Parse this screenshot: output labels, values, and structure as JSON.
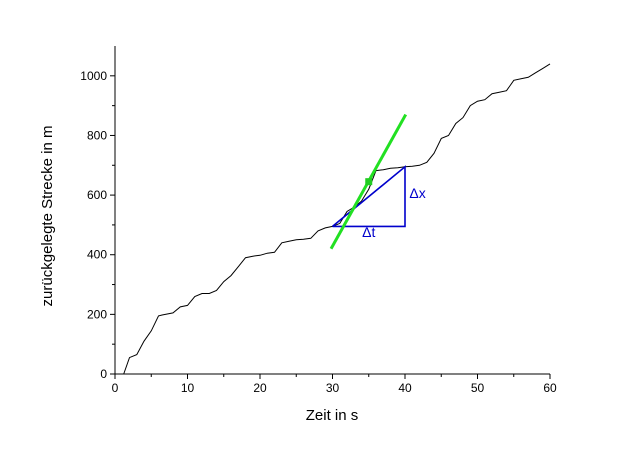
{
  "chart_data": {
    "type": "line",
    "title": "",
    "xlabel": "Zeit in s",
    "ylabel": "zurückgelegte Strecke in m",
    "xlim": [
      0,
      60
    ],
    "ylim": [
      0,
      1100
    ],
    "grid": false,
    "x_ticks": [
      0,
      10,
      20,
      30,
      40,
      50,
      60
    ],
    "y_ticks": [
      0,
      200,
      400,
      600,
      800,
      1000
    ],
    "x_tick_labels": [
      "0",
      "10",
      "20",
      "30",
      "40",
      "50",
      "60"
    ],
    "y_tick_labels": [
      "0",
      "200",
      "400",
      "600",
      "800",
      "1000"
    ],
    "series": [
      {
        "color": "#000000",
        "x": [
          1.2,
          2,
          3,
          4,
          5,
          6,
          6.5,
          8,
          9,
          10,
          11,
          12,
          13,
          14,
          15,
          16,
          17,
          18,
          19,
          20,
          21,
          22,
          23,
          24,
          25,
          26,
          27,
          28,
          29,
          30,
          31,
          32,
          33,
          34,
          35,
          36,
          37,
          38,
          39,
          40,
          41,
          42,
          43,
          44,
          45,
          46,
          47,
          48,
          49,
          50,
          51,
          52,
          53,
          54,
          55,
          56,
          57,
          58,
          59,
          60
        ],
        "y": [
          0,
          55,
          65,
          110,
          145,
          195,
          198,
          205,
          225,
          230,
          260,
          270,
          270,
          280,
          310,
          330,
          360,
          390,
          395,
          398,
          405,
          408,
          440,
          445,
          450,
          452,
          455,
          480,
          490,
          495,
          505,
          545,
          560,
          580,
          620,
          682,
          685,
          690,
          692,
          695,
          697,
          700,
          710,
          740,
          790,
          800,
          840,
          860,
          900,
          915,
          920,
          940,
          945,
          950,
          985,
          990,
          995,
          1010,
          1025,
          1040
        ]
      }
    ],
    "annotations": {
      "tangent": {
        "color": "#22e022",
        "x": [
          29.8,
          40.1
        ],
        "y": [
          420,
          870
        ]
      },
      "point": {
        "color": "#22cc22",
        "x": 35,
        "y": 645
      },
      "triangle": {
        "color": "#0000cc",
        "x": [
          30,
          40,
          40,
          30
        ],
        "y": [
          495,
          495,
          695,
          495
        ]
      },
      "delta_x": {
        "text": "Δx",
        "x": 40.6,
        "y": 590
      },
      "delta_t": {
        "text": "Δt",
        "x": 35,
        "y": 460
      }
    }
  }
}
